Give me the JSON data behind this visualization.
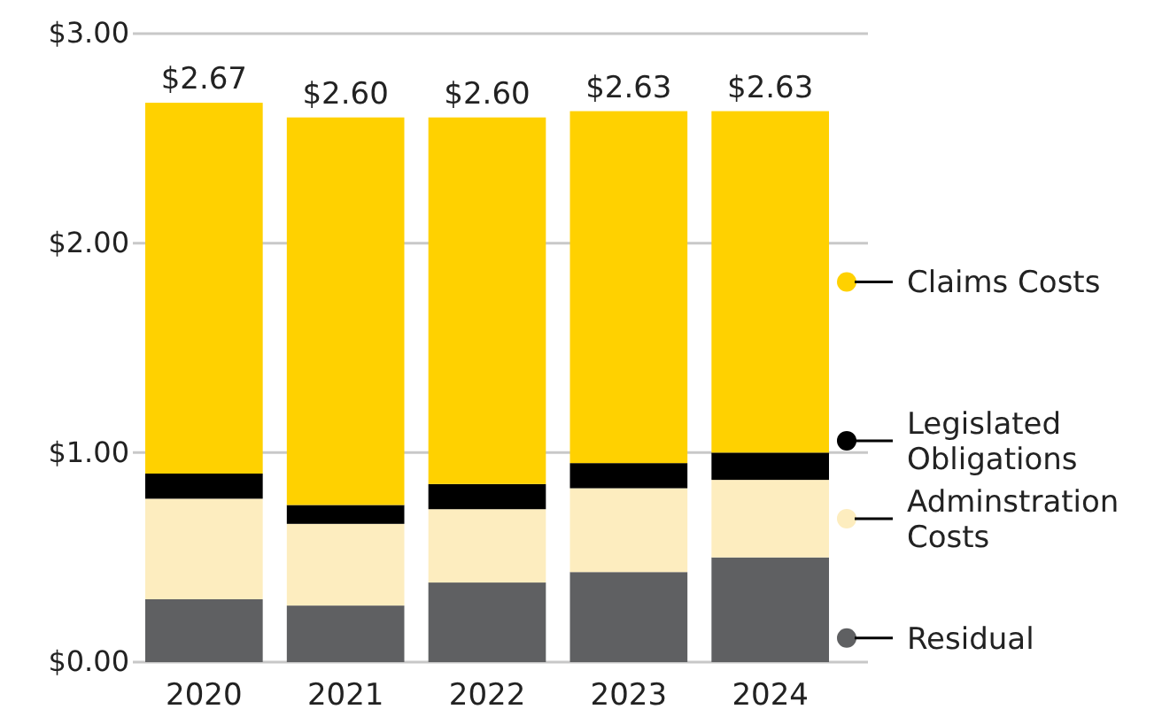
{
  "chart_data": {
    "type": "bar",
    "stacked": true,
    "categories": [
      "2020",
      "2021",
      "2022",
      "2023",
      "2024"
    ],
    "series": [
      {
        "name": "Residual",
        "color": "#5f6062",
        "values": [
          0.3,
          0.27,
          0.38,
          0.43,
          0.5
        ]
      },
      {
        "name": "Adminstration Costs",
        "color": "#fdedbf",
        "values": [
          0.48,
          0.39,
          0.35,
          0.4,
          0.37
        ]
      },
      {
        "name": "Legislated Obligations",
        "color": "#000000",
        "values": [
          0.12,
          0.09,
          0.12,
          0.12,
          0.13
        ]
      },
      {
        "name": "Claims Costs",
        "color": "#ffd100",
        "values": [
          1.77,
          1.85,
          1.75,
          1.68,
          1.63
        ]
      }
    ],
    "totals": [
      "$2.67",
      "$2.60",
      "$2.60",
      "$2.63",
      "$2.63"
    ],
    "ylim": [
      0,
      3
    ],
    "yticks": [
      {
        "value": 0,
        "label": "$0.00"
      },
      {
        "value": 1,
        "label": "$1.00"
      },
      {
        "value": 2,
        "label": "$2.00"
      },
      {
        "value": 3,
        "label": "$3.00"
      }
    ],
    "grid": "y",
    "legend": "right"
  }
}
